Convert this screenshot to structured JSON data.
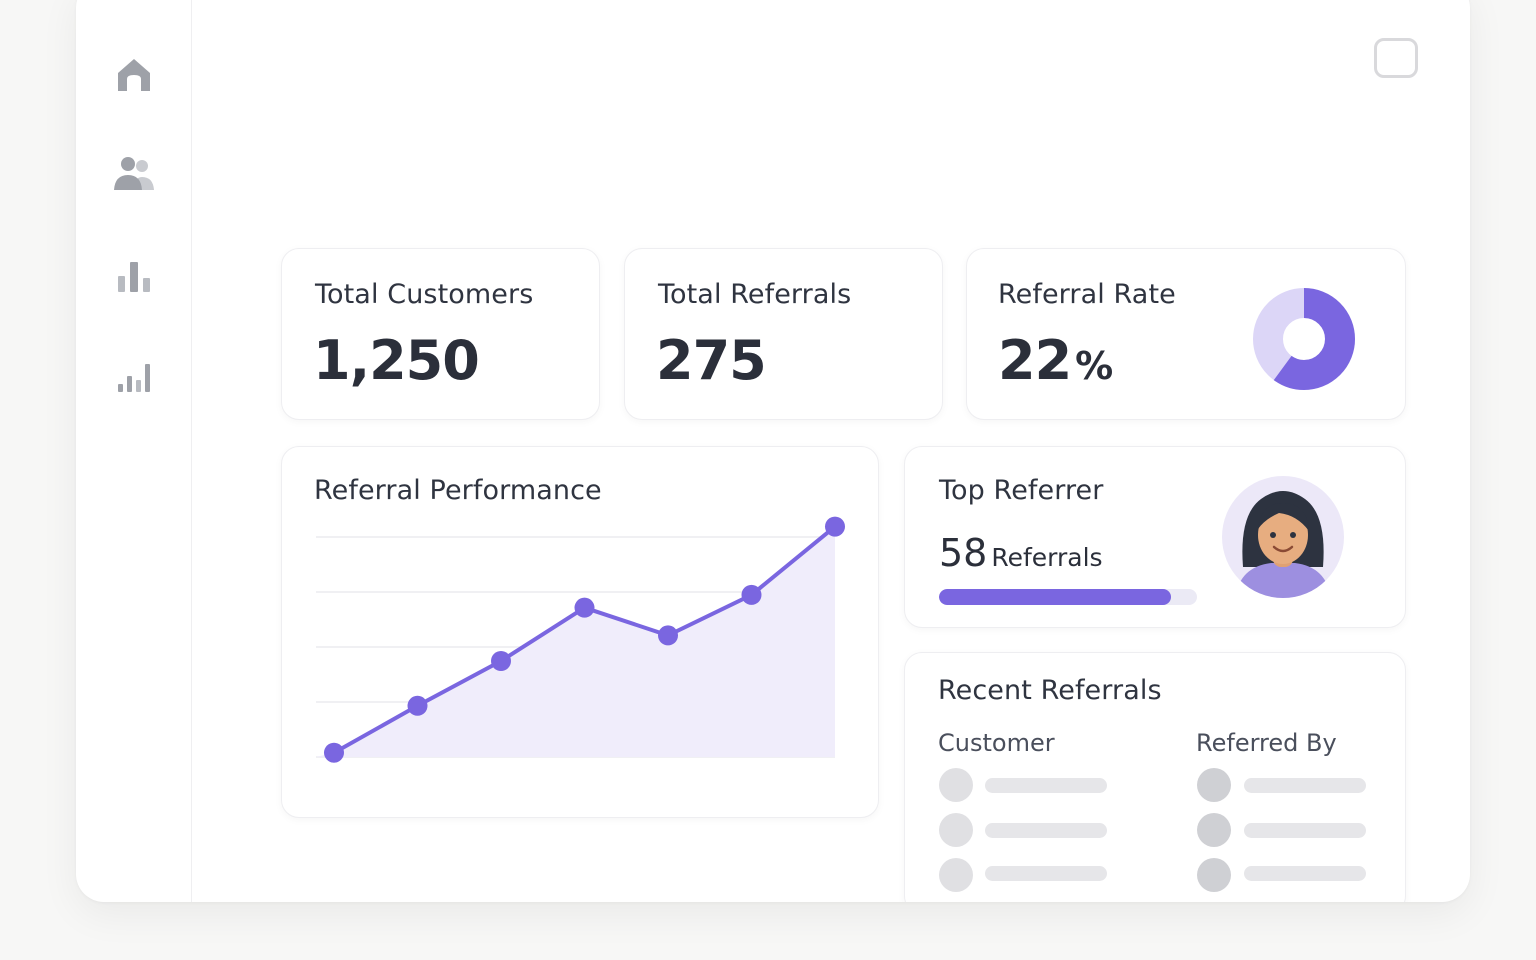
{
  "sidebar": {
    "items": [
      {
        "icon": "home-icon",
        "color": "#9ea1a8"
      },
      {
        "icon": "users-icon",
        "color": "#9ea1a8"
      },
      {
        "icon": "bar-chart-icon",
        "color": "#9ea1a8"
      },
      {
        "icon": "signal-chart-icon",
        "color": "#9ea1a8"
      }
    ]
  },
  "stats": {
    "customers": {
      "label": "Total Customers",
      "value": "1,250"
    },
    "referrals": {
      "label": "Total Referrals",
      "value": "275"
    },
    "rate": {
      "label": "Referral Rate",
      "value": "22",
      "unit": "%",
      "fraction": 0.6
    }
  },
  "performance": {
    "title": "Referral Performance",
    "chart_data": {
      "type": "area",
      "x": [
        1,
        2,
        3,
        4,
        5,
        6,
        7
      ],
      "series": [
        {
          "values": [
            1,
            12,
            22.5,
            35,
            28.5,
            38,
            54
          ]
        }
      ],
      "ylim": [
        0,
        60
      ],
      "grid": true,
      "color": "#7a66e0",
      "fill": "#f0edfb"
    }
  },
  "top_referrer": {
    "title": "Top Referrer",
    "count": "58",
    "unit": "Referrals",
    "progress": 0.9
  },
  "recent": {
    "title": "Recent Referrals",
    "columns": [
      "Customer",
      "Referred By"
    ],
    "rows": 3
  },
  "colors": {
    "accent": "#7a66e0",
    "accent_light": "#dcd6f7"
  }
}
